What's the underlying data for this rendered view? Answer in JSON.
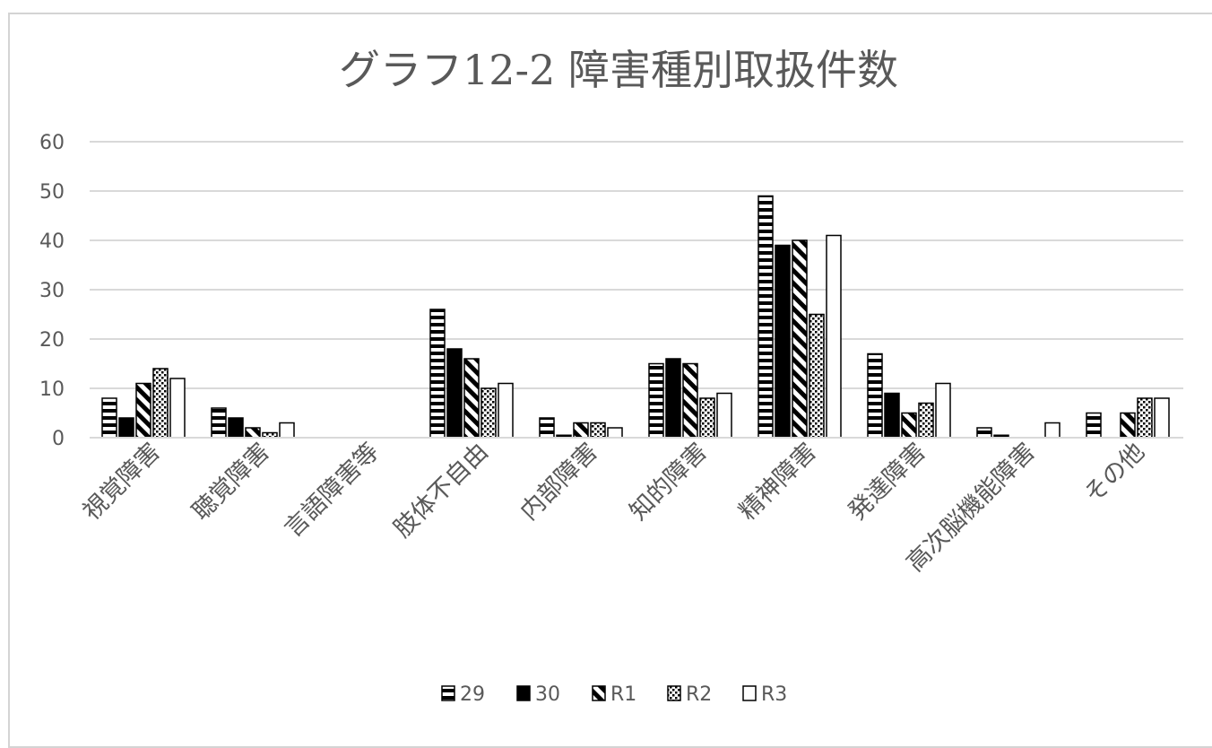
{
  "chart_data": {
    "type": "bar",
    "title": "グラフ12-2 障害種別取扱件数",
    "categories": [
      "視覚障害",
      "聴覚障害",
      "言語障害等",
      "肢体不自由",
      "内部障害",
      "知的障害",
      "精神障害",
      "発達障害",
      "高次脳機能障害",
      "その他"
    ],
    "series": [
      {
        "name": "29",
        "pattern": "horizontal-stripes",
        "values": [
          8,
          6,
          0,
          26,
          4,
          15,
          49,
          17,
          2,
          5
        ]
      },
      {
        "name": "30",
        "pattern": "solid-black",
        "values": [
          4,
          4,
          0,
          18,
          0.5,
          16,
          39,
          9,
          0.5,
          0
        ]
      },
      {
        "name": "R1",
        "pattern": "diagonal-stripes",
        "values": [
          11,
          2,
          0,
          16,
          3,
          15,
          40,
          5,
          0,
          5
        ]
      },
      {
        "name": "R2",
        "pattern": "dots",
        "values": [
          14,
          1,
          0,
          10,
          3,
          8,
          25,
          7,
          0,
          8
        ]
      },
      {
        "name": "R3",
        "pattern": "white",
        "values": [
          12,
          3,
          0,
          11,
          2,
          9,
          41,
          11,
          3,
          8
        ]
      }
    ],
    "yticks": [
      0,
      10,
      20,
      30,
      40,
      50,
      60
    ],
    "ylim": [
      0,
      60
    ],
    "grid": true,
    "legend_position": "bottom",
    "colors": {
      "gridline": "#d9d9d9",
      "text": "#595959",
      "bar_edge": "#000000"
    }
  }
}
